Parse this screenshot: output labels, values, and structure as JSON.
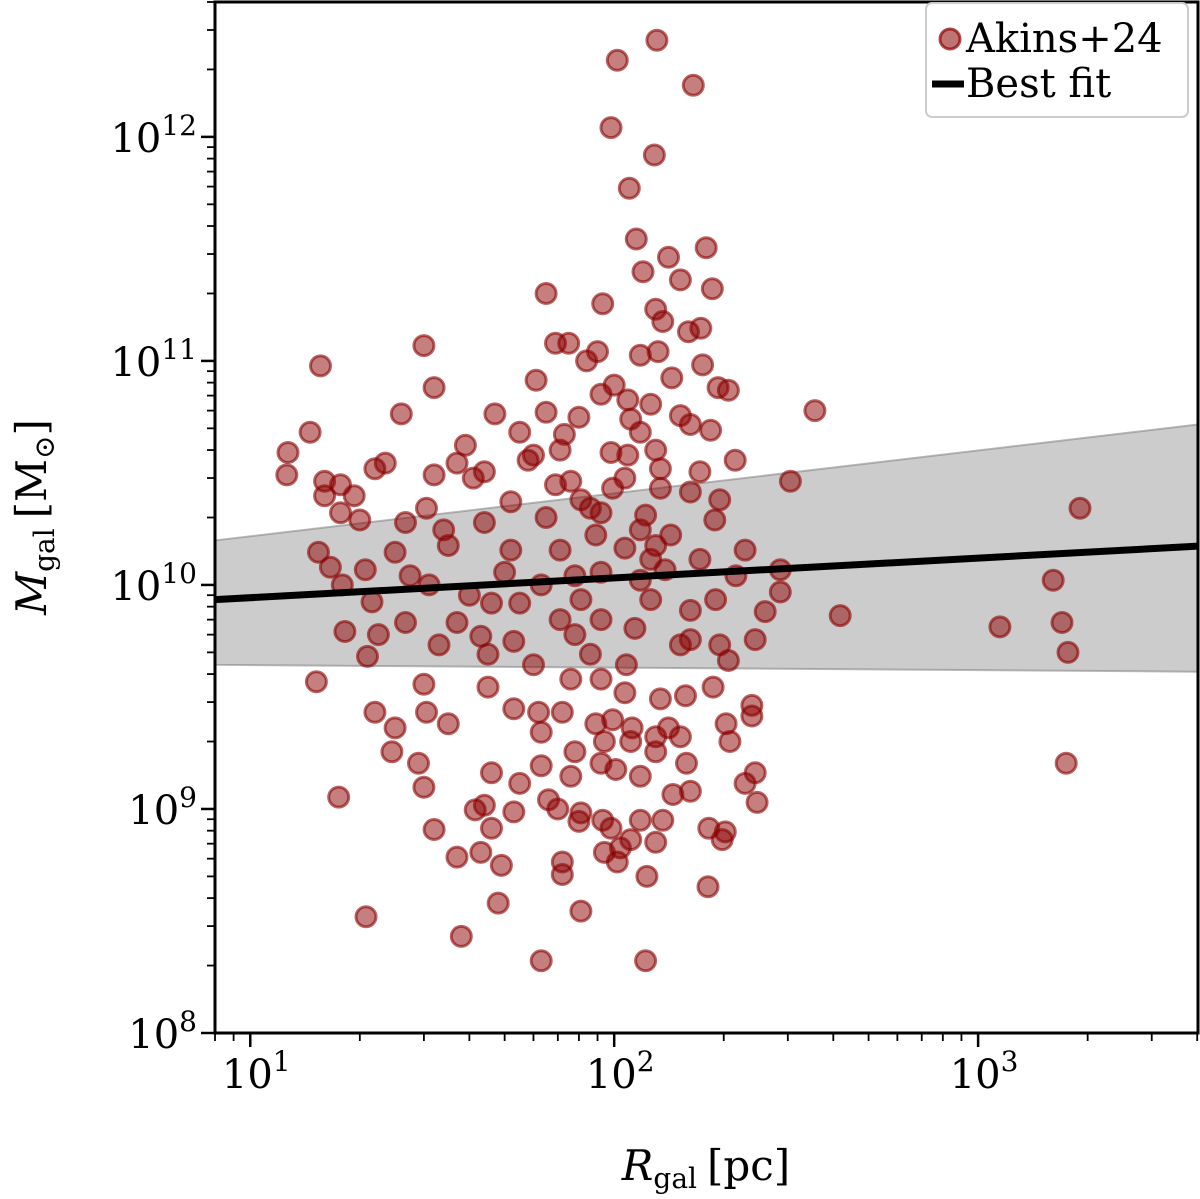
{
  "chart_data": {
    "type": "scatter",
    "x_scale": "log",
    "y_scale": "log",
    "xlim": [
      8,
      4020
    ],
    "ylim": [
      100000000.0,
      4000000000000.0
    ],
    "grid": false,
    "legend_placement": "top-right",
    "xlabel": {
      "symbol": "R",
      "subscript": "gal",
      "unit": "[pc]"
    },
    "ylabel": {
      "symbol": "M",
      "subscript": "gal",
      "unit": "[M",
      "unit_sub": "⊙",
      "unit_close": "]"
    },
    "x_ticks": [
      {
        "base": "10",
        "exp": "1",
        "value": 10
      },
      {
        "base": "10",
        "exp": "2",
        "value": 100
      },
      {
        "base": "10",
        "exp": "3",
        "value": 1000
      }
    ],
    "y_ticks": [
      {
        "base": "10",
        "exp": "8",
        "value": 100000000.0
      },
      {
        "base": "10",
        "exp": "9",
        "value": 1000000000.0
      },
      {
        "base": "10",
        "exp": "10",
        "value": 10000000000.0
      },
      {
        "base": "10",
        "exp": "11",
        "value": 100000000000.0
      },
      {
        "base": "10",
        "exp": "12",
        "value": 1000000000000.0
      }
    ],
    "colors": {
      "points": "#8b0000",
      "fit": "#000000",
      "band": "#b0b0b0"
    },
    "series": [
      {
        "name": "Akins+24",
        "type": "scatter",
        "points": [
          [
            131,
            2700000000000.0
          ],
          [
            102,
            2200000000000.0
          ],
          [
            165,
            1700000000000.0
          ],
          [
            98,
            1100000000000.0
          ],
          [
            129,
            830000000000.0
          ],
          [
            110,
            590000000000.0
          ],
          [
            115,
            350000000000.0
          ],
          [
            179,
            320000000000.0
          ],
          [
            141,
            290000000000.0
          ],
          [
            120,
            250000000000.0
          ],
          [
            152,
            230000000000.0
          ],
          [
            186,
            210000000000.0
          ],
          [
            65,
            200000000000.0
          ],
          [
            93,
            180000000000.0
          ],
          [
            130,
            170000000000.0
          ],
          [
            136,
            150000000000.0
          ],
          [
            160,
            135000000000.0
          ],
          [
            173,
            140000000000.0
          ],
          [
            75,
            120000000000.0
          ],
          [
            69,
            120000000000.0
          ],
          [
            90,
            110000000000.0
          ],
          [
            30,
            117000000000.0
          ],
          [
            15.6,
            95000000000.0
          ],
          [
            84,
            100000000000.0
          ],
          [
            118,
            106000000000.0
          ],
          [
            132,
            110000000000.0
          ],
          [
            175,
            96000000000.0
          ],
          [
            61,
            82000000000.0
          ],
          [
            100,
            78000000000.0
          ],
          [
            144,
            84000000000.0
          ],
          [
            32,
            76000000000.0
          ],
          [
            193,
            76000000000.0
          ],
          [
            206,
            74000000000.0
          ],
          [
            92,
            71000000000.0
          ],
          [
            109,
            67000000000.0
          ],
          [
            126,
            64000000000.0
          ],
          [
            356,
            60000000000.0
          ],
          [
            26,
            58000000000.0
          ],
          [
            47,
            58000000000.0
          ],
          [
            65,
            59000000000.0
          ],
          [
            80,
            56000000000.0
          ],
          [
            111,
            55000000000.0
          ],
          [
            152,
            57000000000.0
          ],
          [
            162,
            52000000000.0
          ],
          [
            55,
            48000000000.0
          ],
          [
            73,
            47000000000.0
          ],
          [
            14.6,
            48000000000.0
          ],
          [
            118,
            48000000000.0
          ],
          [
            184,
            49000000000.0
          ],
          [
            39,
            42000000000.0
          ],
          [
            12.7,
            39000000000.0
          ],
          [
            60,
            38000000000.0
          ],
          [
            71,
            40000000000.0
          ],
          [
            98,
            39000000000.0
          ],
          [
            130,
            40000000000.0
          ],
          [
            23.5,
            35000000000.0
          ],
          [
            37,
            35000000000.0
          ],
          [
            58,
            36000000000.0
          ],
          [
            215,
            36000000000.0
          ],
          [
            12.6,
            31000000000.0
          ],
          [
            16,
            29000000000.0
          ],
          [
            22,
            33000000000.0
          ],
          [
            32,
            31000000000.0
          ],
          [
            44,
            32000000000.0
          ],
          [
            41,
            30000000000.0
          ],
          [
            76,
            29000000000.0
          ],
          [
            107,
            30000000000.0
          ],
          [
            172,
            32000000000.0
          ],
          [
            305,
            29000000000.0
          ],
          [
            17.7,
            28000000000.0
          ],
          [
            69,
            28000000000.0
          ],
          [
            134,
            27000000000.0
          ],
          [
            162,
            26000000000.0
          ],
          [
            16,
            25000000000.0
          ],
          [
            19.3,
            25000000000.0
          ],
          [
            52,
            23500000000.0
          ],
          [
            81,
            24000000000.0
          ],
          [
            195,
            24000000000.0
          ],
          [
            1905,
            22000000000.0
          ],
          [
            30.5,
            22000000000.0
          ],
          [
            17.7,
            21000000000.0
          ],
          [
            92,
            21000000000.0
          ],
          [
            122,
            20500000000.0
          ],
          [
            65,
            20000000000.0
          ],
          [
            26.7,
            19000000000.0
          ],
          [
            44,
            19000000000.0
          ],
          [
            20,
            19500000000.0
          ],
          [
            189,
            19500000000.0
          ],
          [
            34,
            17600000000.0
          ],
          [
            118,
            17600000000.0
          ],
          [
            89,
            16700000000.0
          ],
          [
            143,
            16700000000.0
          ],
          [
            229,
            14300000000.0
          ],
          [
            15.4,
            14000000000.0
          ],
          [
            25,
            14000000000.0
          ],
          [
            35,
            15000000000.0
          ],
          [
            52,
            14300000000.0
          ],
          [
            71,
            14300000000.0
          ],
          [
            107,
            14600000000.0
          ],
          [
            130,
            15000000000.0
          ],
          [
            16.6,
            12000000000.0
          ],
          [
            20.7,
            11700000000.0
          ],
          [
            27.5,
            11000000000.0
          ],
          [
            50,
            11400000000.0
          ],
          [
            216,
            11000000000.0
          ],
          [
            1608,
            10500000000.0
          ],
          [
            78,
            11000000000.0
          ],
          [
            92,
            11400000000.0
          ],
          [
            286,
            11700000000.0
          ],
          [
            17.9,
            10000000000.0
          ],
          [
            31,
            10000000000.0
          ],
          [
            63,
            10000000000.0
          ],
          [
            40,
            9000000000.0
          ],
          [
            286,
            9300000000.0
          ],
          [
            21.6,
            8400000000.0
          ],
          [
            46,
            8300000000.0
          ],
          [
            55,
            8300000000.0
          ],
          [
            81,
            8600000000.0
          ],
          [
            126,
            8600000000.0
          ],
          [
            190,
            8600000000.0
          ],
          [
            260,
            7600000000.0
          ],
          [
            418,
            7300000000.0
          ],
          [
            26.7,
            6800000000.0
          ],
          [
            37,
            6800000000.0
          ],
          [
            18.2,
            6200000000.0
          ],
          [
            92,
            7000000000.0
          ],
          [
            114,
            6400000000.0
          ],
          [
            1148,
            6500000000.0
          ],
          [
            1700,
            6800000000.0
          ],
          [
            22.5,
            6000000000.0
          ],
          [
            43,
            5900000000.0
          ],
          [
            53,
            5600000000.0
          ],
          [
            78,
            6000000000.0
          ],
          [
            162,
            5700000000.0
          ],
          [
            195,
            5400000000.0
          ],
          [
            244,
            5700000000.0
          ],
          [
            33,
            5400000000.0
          ],
          [
            152,
            5400000000.0
          ],
          [
            1766,
            5000000000.0
          ],
          [
            21,
            4800000000.0
          ],
          [
            45,
            4900000000.0
          ],
          [
            86,
            4900000000.0
          ],
          [
            206,
            4600000000.0
          ],
          [
            60,
            4400000000.0
          ],
          [
            108,
            4400000000.0
          ],
          [
            15.2,
            3700000000.0
          ],
          [
            76,
            3800000000.0
          ],
          [
            30,
            3600000000.0
          ],
          [
            92,
            3800000000.0
          ],
          [
            45,
            3500000000.0
          ],
          [
            187,
            3500000000.0
          ],
          [
            107,
            3300000000.0
          ],
          [
            157,
            3200000000.0
          ],
          [
            134,
            3100000000.0
          ],
          [
            239,
            2900000000.0
          ],
          [
            53,
            2800000000.0
          ],
          [
            22,
            2700000000.0
          ],
          [
            30.5,
            2700000000.0
          ],
          [
            62,
            2700000000.0
          ],
          [
            72,
            2700000000.0
          ],
          [
            239,
            2600000000.0
          ],
          [
            99,
            2500000000.0
          ],
          [
            35,
            2400000000.0
          ],
          [
            25,
            2300000000.0
          ],
          [
            112,
            2300000000.0
          ],
          [
            89,
            2400000000.0
          ],
          [
            141,
            2300000000.0
          ],
          [
            203,
            2400000000.0
          ],
          [
            63,
            2200000000.0
          ],
          [
            130,
            2100000000.0
          ],
          [
            152,
            2100000000.0
          ],
          [
            94,
            2000000000.0
          ],
          [
            111,
            2000000000.0
          ],
          [
            208,
            2000000000.0
          ],
          [
            24.5,
            1800000000.0
          ],
          [
            78,
            1800000000.0
          ],
          [
            130,
            1800000000.0
          ],
          [
            158,
            1600000000.0
          ],
          [
            1746,
            1600000000.0
          ],
          [
            29,
            1600000000.0
          ],
          [
            63,
            1560000000.0
          ],
          [
            92,
            1600000000.0
          ],
          [
            101,
            1500000000.0
          ],
          [
            46,
            1450000000.0
          ],
          [
            76,
            1400000000.0
          ],
          [
            244,
            1450000000.0
          ],
          [
            118,
            1400000000.0
          ],
          [
            229,
            1300000000.0
          ],
          [
            30,
            1250000000.0
          ],
          [
            55,
            1300000000.0
          ],
          [
            17.5,
            1130000000.0
          ],
          [
            162,
            1200000000.0
          ],
          [
            66,
            1100000000.0
          ],
          [
            145,
            1160000000.0
          ],
          [
            247,
            1070000000.0
          ],
          [
            44,
            1040000000.0
          ],
          [
            41.5,
            990000000.0
          ],
          [
            53,
            970000000.0
          ],
          [
            70,
            1000000000.0
          ],
          [
            81,
            960000000.0
          ],
          [
            93,
            890000000.0
          ],
          [
            118,
            890000000.0
          ],
          [
            136,
            890000000.0
          ],
          [
            80,
            880000000.0
          ],
          [
            32,
            810000000.0
          ],
          [
            46,
            820000000.0
          ],
          [
            98,
            820000000.0
          ],
          [
            182,
            820000000.0
          ],
          [
            202,
            790000000.0
          ],
          [
            111,
            730000000.0
          ],
          [
            198,
            730000000.0
          ],
          [
            130,
            710000000.0
          ],
          [
            104,
            670000000.0
          ],
          [
            94,
            640000000.0
          ],
          [
            43,
            640000000.0
          ],
          [
            37,
            610000000.0
          ],
          [
            49,
            560000000.0
          ],
          [
            72,
            580000000.0
          ],
          [
            102,
            580000000.0
          ],
          [
            72,
            510000000.0
          ],
          [
            123,
            500000000.0
          ],
          [
            181,
            450000000.0
          ],
          [
            48,
            380000000.0
          ],
          [
            81,
            350000000.0
          ],
          [
            20.8,
            330000000.0
          ],
          [
            38,
            270000000.0
          ],
          [
            63,
            210000000.0
          ],
          [
            122,
            210000000.0
          ],
          [
            86,
            22000000000.0
          ],
          [
            99,
            27000000000.0
          ],
          [
            134,
            33000000000.0
          ],
          [
            109,
            38000000000.0
          ],
          [
            126,
            13000000000.0
          ],
          [
            138,
            11700000000.0
          ],
          [
            118,
            10500000000.0
          ],
          [
            162,
            7700000000.0
          ],
          [
            71,
            7000000000.0
          ],
          [
            172,
            13000000000.0
          ]
        ]
      },
      {
        "name": "Best fit",
        "type": "line",
        "x": [
          8,
          4020
        ],
        "y": [
          8600000000.0,
          14900000000.0
        ],
        "band_lower": [
          4400000000.0,
          4100000000.0
        ],
        "band_upper": [
          15800000000.0,
          52000000000.0
        ]
      }
    ]
  }
}
